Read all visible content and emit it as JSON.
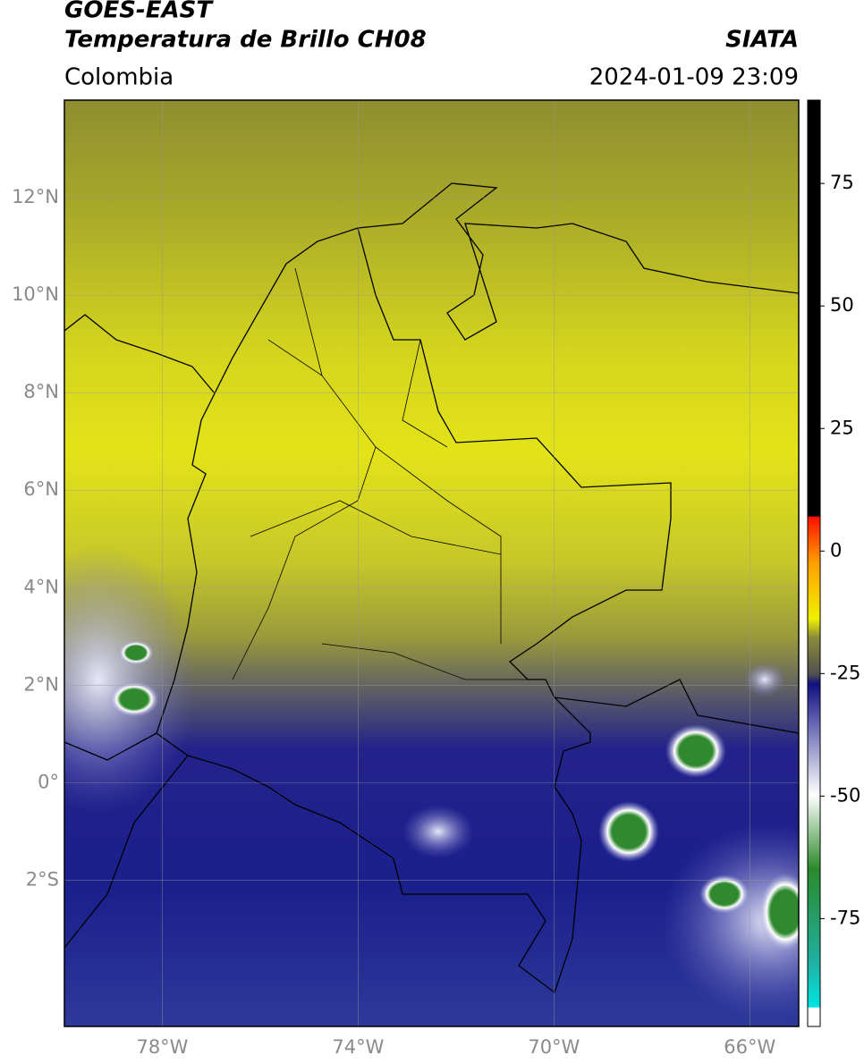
{
  "header": {
    "title": "GOES-EAST",
    "subtitle": "Temperatura de Brillo CH08",
    "region": "Colombia",
    "source": "SIATA",
    "datetime": "2024-01-09 23:09"
  },
  "map": {
    "lonlim": [
      -80,
      -65
    ],
    "latlim": [
      -5,
      14
    ],
    "lat_ticks": [
      {
        "value": 12,
        "label": "12°N"
      },
      {
        "value": 10,
        "label": "10°N"
      },
      {
        "value": 8,
        "label": "8°N"
      },
      {
        "value": 6,
        "label": "6°N"
      },
      {
        "value": 4,
        "label": "4°N"
      },
      {
        "value": 2,
        "label": "2°N"
      },
      {
        "value": 0,
        "label": "0°"
      },
      {
        "value": -2,
        "label": "2°S"
      }
    ],
    "lon_ticks": [
      {
        "value": -78,
        "label": "78°W"
      },
      {
        "value": -74,
        "label": "74°W"
      },
      {
        "value": -70,
        "label": "70°W"
      },
      {
        "value": -66,
        "label": "66°W"
      }
    ]
  },
  "colorbar": {
    "lim": [
      -97,
      92
    ],
    "ticks": [
      75,
      50,
      25,
      0,
      -25,
      -50,
      -75
    ]
  }
}
